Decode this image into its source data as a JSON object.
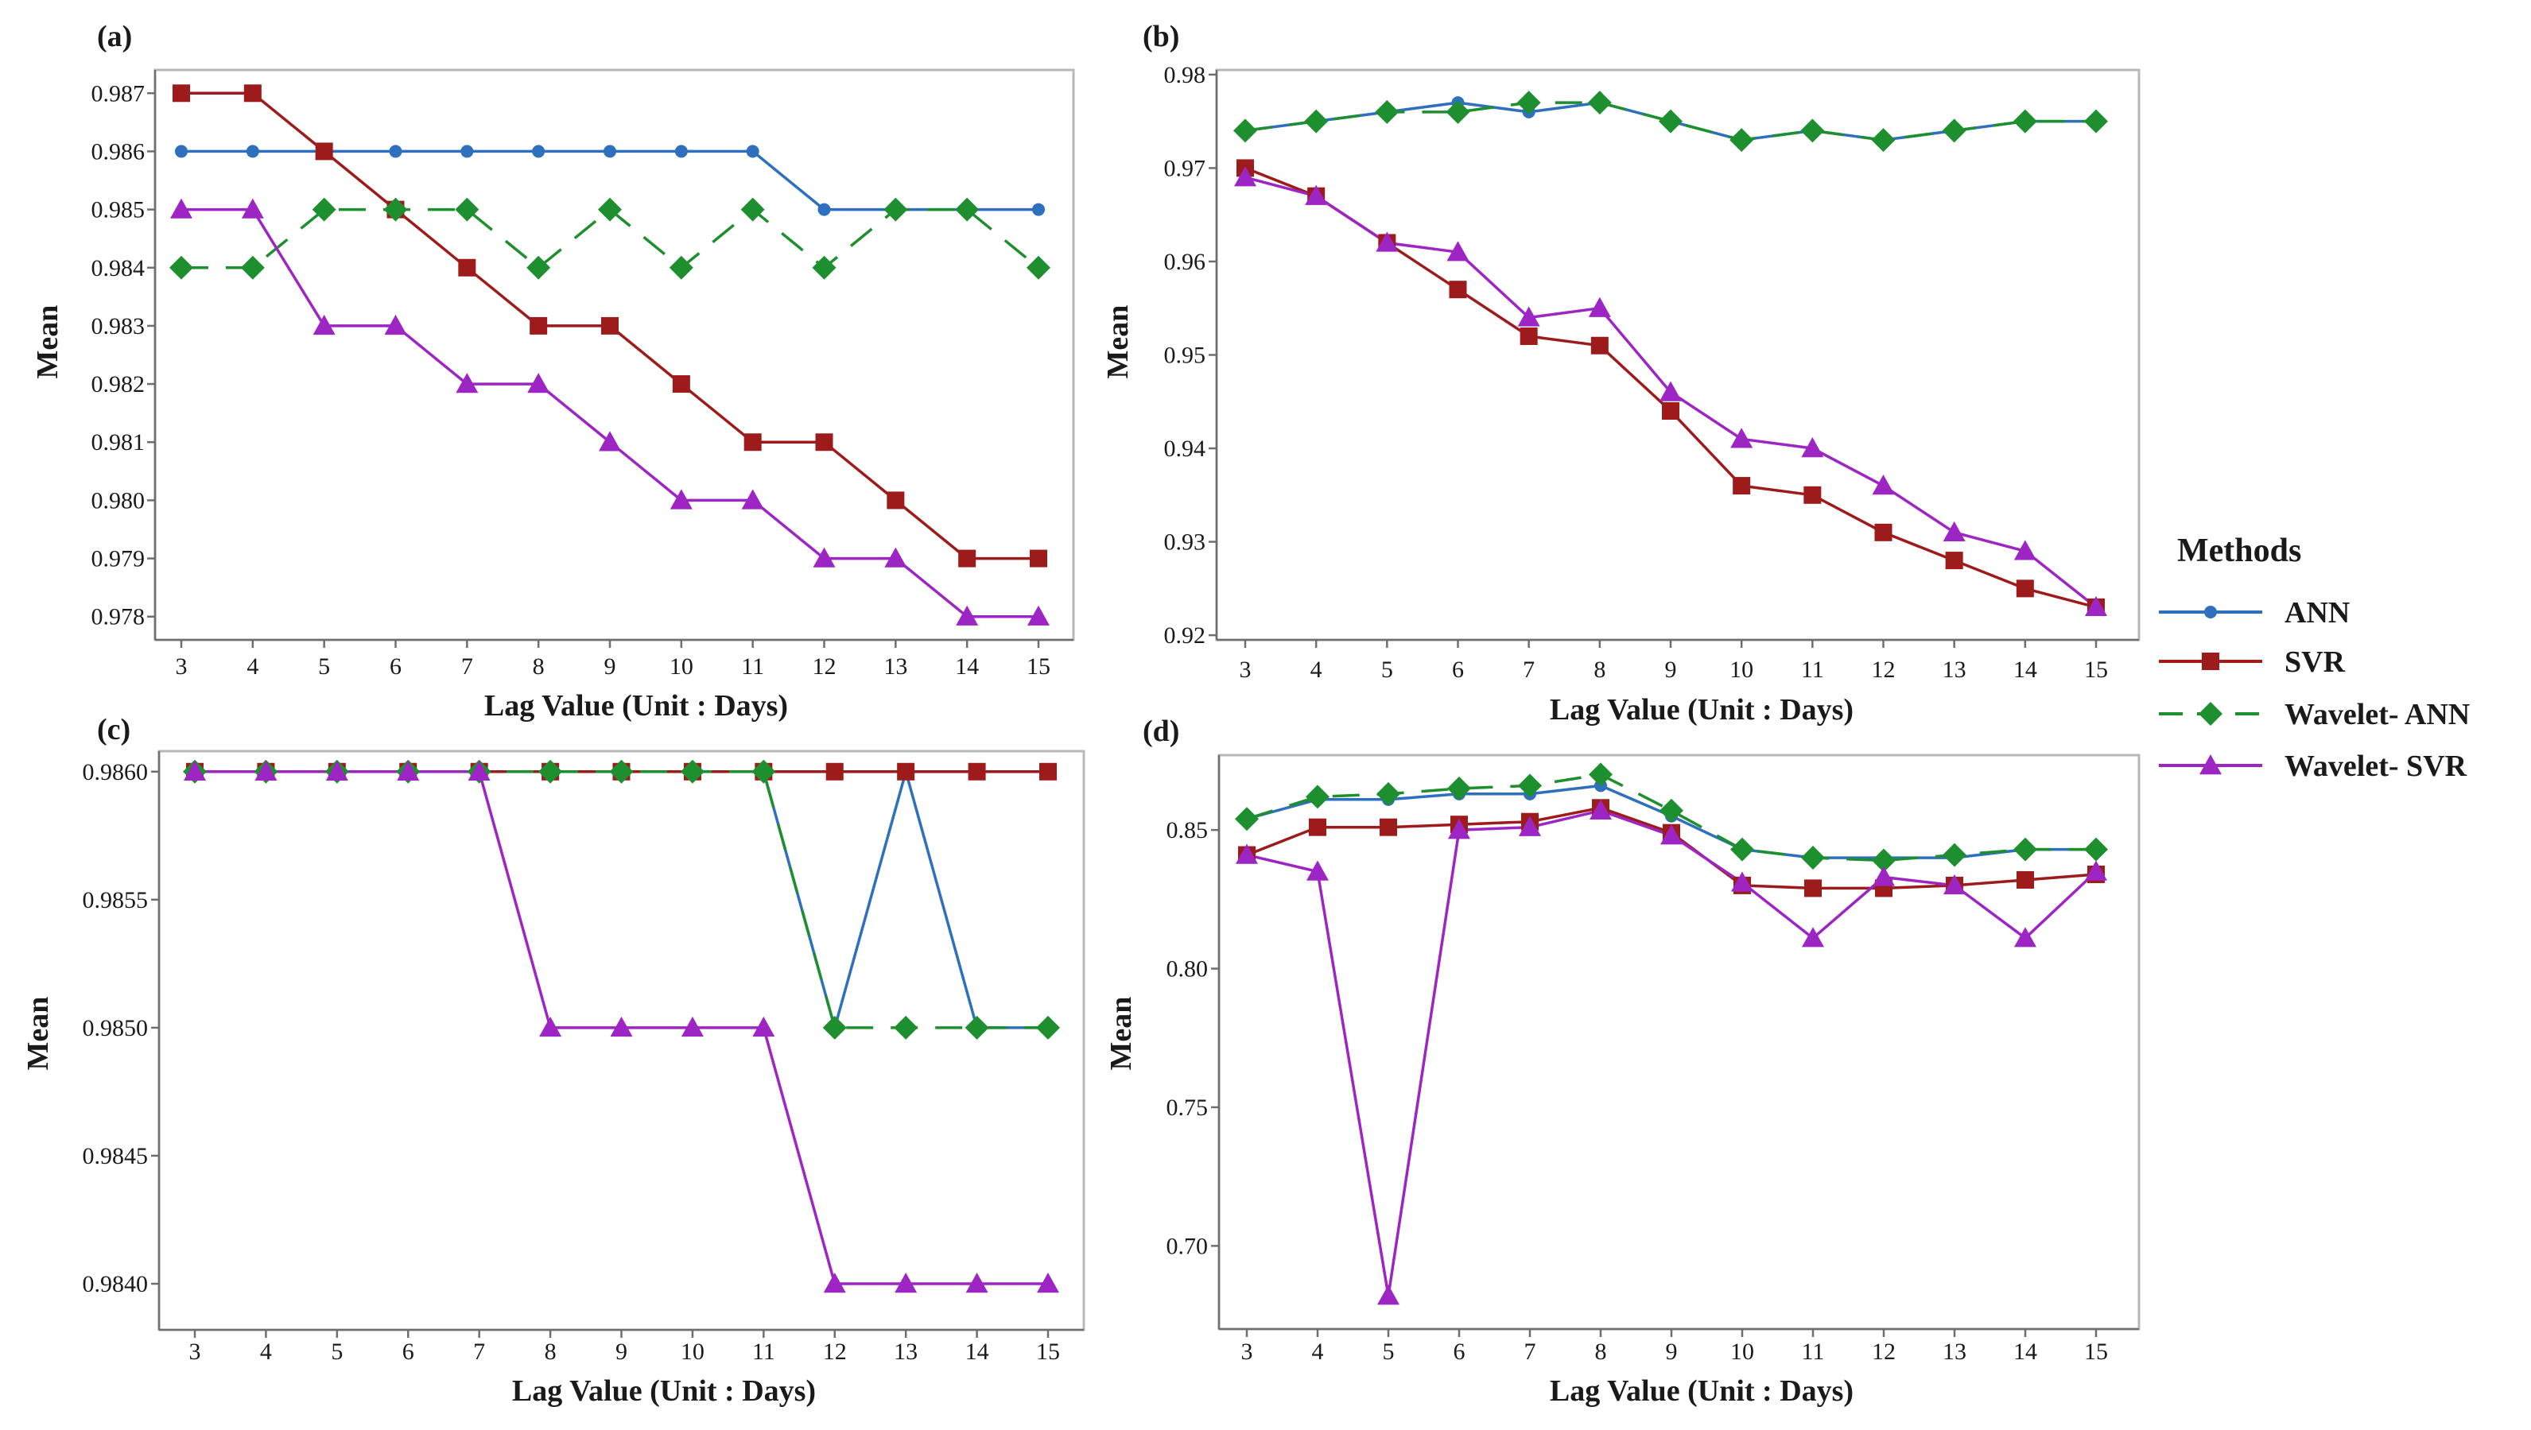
{
  "legend": {
    "title": "Methods",
    "items": [
      {
        "name": "ANN",
        "color": "#2e6fbe",
        "marker": "circle",
        "dash": "solid"
      },
      {
        "name": "SVR",
        "color": "#9e1b1b",
        "marker": "square",
        "dash": "solid"
      },
      {
        "name": "Wavelet- ANN",
        "color": "#1e8f2e",
        "marker": "diamond",
        "dash": "dashed"
      },
      {
        "name": "Wavelet- SVR",
        "color": "#9d25c4",
        "marker": "triangle",
        "dash": "solid"
      }
    ]
  },
  "chart_data": [
    {
      "panel": "(a)",
      "type": "line",
      "xlabel": "Lag Value (Unit : Days)",
      "ylabel": "Mean",
      "categories": [
        3,
        4,
        5,
        6,
        7,
        8,
        9,
        10,
        11,
        12,
        13,
        14,
        15
      ],
      "ylim": [
        0.9776,
        0.9874
      ],
      "yticks": [
        0.978,
        0.979,
        0.98,
        0.981,
        0.982,
        0.983,
        0.984,
        0.985,
        0.986,
        0.987
      ],
      "ytick_labels": [
        "0.978",
        "0.979",
        "0.980",
        "0.981",
        "0.982",
        "0.983",
        "0.984",
        "0.985",
        "0.986",
        "0.987"
      ],
      "series": [
        {
          "name": "ANN",
          "values": [
            0.986,
            0.986,
            0.986,
            0.986,
            0.986,
            0.986,
            0.986,
            0.986,
            0.986,
            0.985,
            0.985,
            0.985,
            0.985
          ]
        },
        {
          "name": "SVR",
          "values": [
            0.987,
            0.987,
            0.986,
            0.985,
            0.984,
            0.983,
            0.983,
            0.982,
            0.981,
            0.981,
            0.98,
            0.979,
            0.979
          ]
        },
        {
          "name": "Wavelet- ANN",
          "values": [
            0.984,
            0.984,
            0.985,
            0.985,
            0.985,
            0.984,
            0.985,
            0.984,
            0.985,
            0.984,
            0.985,
            0.985,
            0.984
          ]
        },
        {
          "name": "Wavelet- SVR",
          "values": [
            0.985,
            0.985,
            0.983,
            0.983,
            0.982,
            0.982,
            0.981,
            0.98,
            0.98,
            0.979,
            0.979,
            0.978,
            0.978
          ]
        }
      ]
    },
    {
      "panel": "(b)",
      "type": "line",
      "xlabel": "Lag Value (Unit : Days)",
      "ylabel": "Mean",
      "categories": [
        3,
        4,
        5,
        6,
        7,
        8,
        9,
        10,
        11,
        12,
        13,
        14,
        15
      ],
      "ylim": [
        0.9195,
        0.9805
      ],
      "yticks": [
        0.92,
        0.93,
        0.94,
        0.95,
        0.96,
        0.97,
        0.98
      ],
      "ytick_labels": [
        "0.92",
        "0.93",
        "0.94",
        "0.95",
        "0.96",
        "0.97",
        "0.98"
      ],
      "series": [
        {
          "name": "ANN",
          "values": [
            0.974,
            0.975,
            0.976,
            0.977,
            0.976,
            0.977,
            0.975,
            0.973,
            0.974,
            0.973,
            0.974,
            0.975,
            0.975
          ]
        },
        {
          "name": "SVR",
          "values": [
            0.97,
            0.967,
            0.962,
            0.957,
            0.952,
            0.951,
            0.944,
            0.936,
            0.935,
            0.931,
            0.928,
            0.925,
            0.923
          ]
        },
        {
          "name": "Wavelet- ANN",
          "values": [
            0.974,
            0.975,
            0.976,
            0.976,
            0.977,
            0.977,
            0.975,
            0.973,
            0.974,
            0.973,
            0.974,
            0.975,
            0.975
          ]
        },
        {
          "name": "Wavelet- SVR",
          "values": [
            0.969,
            0.967,
            0.962,
            0.961,
            0.954,
            0.955,
            0.946,
            0.941,
            0.94,
            0.936,
            0.931,
            0.929,
            0.923
          ]
        }
      ]
    },
    {
      "panel": "(c)",
      "type": "line",
      "xlabel": "Lag Value (Unit : Days)",
      "ylabel": "Mean",
      "categories": [
        3,
        4,
        5,
        6,
        7,
        8,
        9,
        10,
        11,
        12,
        13,
        14,
        15
      ],
      "ylim": [
        0.98382,
        0.98608
      ],
      "yticks": [
        0.984,
        0.9845,
        0.985,
        0.9855,
        0.986
      ],
      "ytick_labels": [
        "0.9840",
        "0.9845",
        "0.9850",
        "0.9855",
        "0.9860"
      ],
      "series": [
        {
          "name": "ANN",
          "values": [
            0.986,
            0.986,
            0.986,
            0.986,
            0.986,
            0.986,
            0.986,
            0.986,
            0.986,
            0.985,
            0.986,
            0.985,
            0.985
          ]
        },
        {
          "name": "SVR",
          "values": [
            0.986,
            0.986,
            0.986,
            0.986,
            0.986,
            0.986,
            0.986,
            0.986,
            0.986,
            0.986,
            0.986,
            0.986,
            0.986
          ]
        },
        {
          "name": "Wavelet- ANN",
          "values": [
            0.986,
            0.986,
            0.986,
            0.986,
            0.986,
            0.986,
            0.986,
            0.986,
            0.986,
            0.985,
            0.985,
            0.985,
            0.985
          ]
        },
        {
          "name": "Wavelet- SVR",
          "values": [
            0.986,
            0.986,
            0.986,
            0.986,
            0.986,
            0.985,
            0.985,
            0.985,
            0.985,
            0.984,
            0.984,
            0.984,
            0.984
          ]
        }
      ]
    },
    {
      "panel": "(d)",
      "type": "line",
      "xlabel": "Lag Value (Unit : Days)",
      "ylabel": "Mean",
      "categories": [
        3,
        4,
        5,
        6,
        7,
        8,
        9,
        10,
        11,
        12,
        13,
        14,
        15
      ],
      "ylim": [
        0.67,
        0.877
      ],
      "yticks": [
        0.7,
        0.75,
        0.8,
        0.85
      ],
      "ytick_labels": [
        "0.70",
        "0.75",
        "0.80",
        "0.85"
      ],
      "series": [
        {
          "name": "ANN",
          "values": [
            0.854,
            0.861,
            0.861,
            0.863,
            0.863,
            0.866,
            0.855,
            0.843,
            0.84,
            0.84,
            0.84,
            0.843,
            0.843
          ]
        },
        {
          "name": "SVR",
          "values": [
            0.841,
            0.851,
            0.851,
            0.852,
            0.853,
            0.858,
            0.849,
            0.83,
            0.829,
            0.829,
            0.83,
            0.832,
            0.834
          ]
        },
        {
          "name": "Wavelet- ANN",
          "values": [
            0.854,
            0.862,
            0.863,
            0.865,
            0.866,
            0.87,
            0.857,
            0.843,
            0.84,
            0.839,
            0.841,
            0.843,
            0.843
          ]
        },
        {
          "name": "Wavelet- SVR",
          "values": [
            0.841,
            0.835,
            0.682,
            0.85,
            0.851,
            0.857,
            0.848,
            0.831,
            0.811,
            0.833,
            0.83,
            0.811,
            0.835
          ]
        }
      ]
    }
  ]
}
